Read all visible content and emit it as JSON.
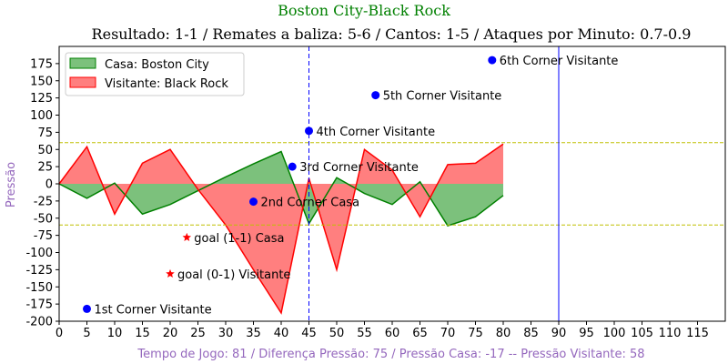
{
  "chart_data": {
    "type": "area",
    "title": "Boston City-Black Rock",
    "subtitle": "Resultado: 1-1 / Remates a baliza: 5-6 / Cantos: 1-5 / Ataques por Minuto: 0.7-0.9",
    "ylabel": "Pressão",
    "xlabel": "Tempo de Jogo: 81 / Diferença Pressão: 75 / Pressão Casa: -17 -- Pressão Visitante: 58",
    "xlim": [
      0,
      120
    ],
    "ylim": [
      -200,
      200
    ],
    "x_ticks": [
      0,
      5,
      10,
      15,
      20,
      25,
      30,
      35,
      40,
      45,
      50,
      55,
      60,
      65,
      70,
      75,
      80,
      85,
      90,
      95,
      100,
      105,
      110,
      115
    ],
    "y_ticks": [
      -200,
      -175,
      -150,
      -125,
      -100,
      -75,
      -50,
      -25,
      0,
      25,
      50,
      75,
      100,
      125,
      150,
      175
    ],
    "legend_position": "top-left",
    "colors": {
      "home_line": "#008000",
      "home_fill": "#7cc17c",
      "away_line": "#ff0000",
      "away_fill": "#ff7f7f",
      "halftime_line": "#0000ff",
      "reference_line": "#bfbf00",
      "event_dot": "#0000ff",
      "goal_star": "#ff0000",
      "title": "#008000",
      "xlabel": "#9467bd",
      "ylabel": "#9467bd"
    },
    "series": [
      {
        "name": "Casa: Boston City",
        "x": [
          0,
          5,
          10,
          15,
          20,
          25,
          30,
          35,
          40,
          45,
          50,
          55,
          60,
          65,
          70,
          75,
          80
        ],
        "values": [
          0,
          -21,
          1,
          -44,
          -30,
          -10,
          10,
          29,
          47,
          -58,
          9,
          -14,
          -30,
          3,
          -61,
          -48,
          -17
        ]
      },
      {
        "name": "Visitante: Black Rock",
        "x": [
          0,
          5,
          10,
          15,
          20,
          25,
          30,
          35,
          40,
          45,
          50,
          55,
          60,
          65,
          70,
          75,
          80
        ],
        "values": [
          0,
          54,
          -44,
          30,
          50,
          -8,
          -60,
          -125,
          -188,
          8,
          -125,
          50,
          20,
          -48,
          28,
          30,
          58
        ]
      }
    ],
    "reference_lines": [
      60,
      -60
    ],
    "vertical_lines": [
      45,
      90
    ],
    "events": [
      {
        "x": 5,
        "y": -182,
        "marker": "dot",
        "label": "1st Corner Visitante"
      },
      {
        "x": 35,
        "y": -26,
        "marker": "dot",
        "label": "2nd Corner Casa"
      },
      {
        "x": 42,
        "y": 25,
        "marker": "dot",
        "label": "3rd Corner Visitante"
      },
      {
        "x": 45,
        "y": 77,
        "marker": "dot",
        "label": "4th Corner Visitante"
      },
      {
        "x": 57,
        "y": 129,
        "marker": "dot",
        "label": "5th Corner Visitante"
      },
      {
        "x": 78,
        "y": 180,
        "marker": "dot",
        "label": "6th Corner Visitante"
      },
      {
        "x": 20,
        "y": -131,
        "marker": "star",
        "label": "goal (0-1) Visitante"
      },
      {
        "x": 23,
        "y": -78,
        "marker": "star",
        "label": "goal (1-1) Casa"
      }
    ]
  }
}
